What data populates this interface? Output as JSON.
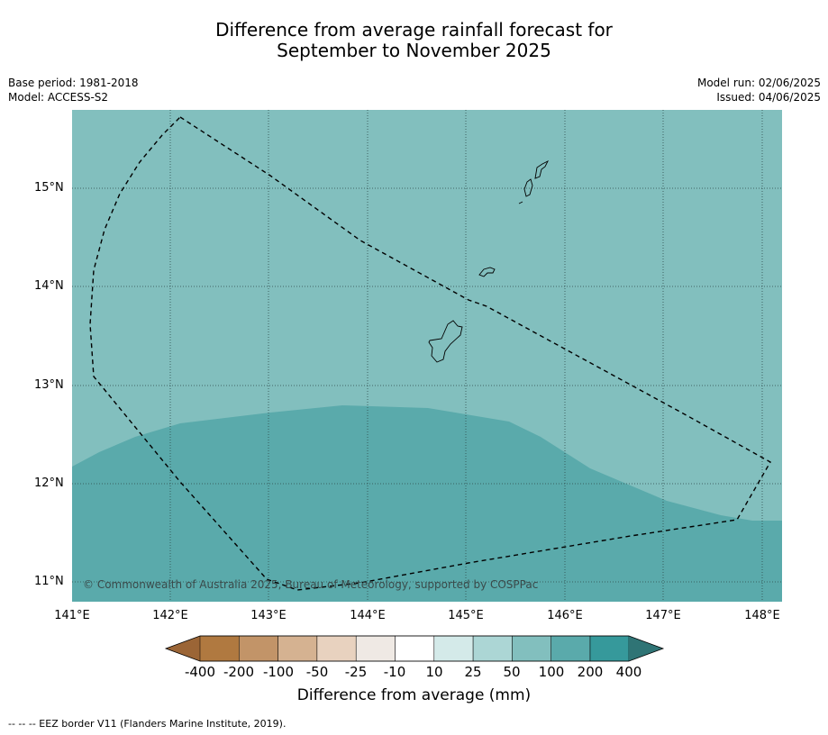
{
  "title": {
    "line1": "Difference from average rainfall forecast for",
    "line2": "September to November 2025"
  },
  "meta": {
    "base_period": "Base period: 1981-2018",
    "model": "Model: ACCESS-S2",
    "model_run": "Model run: 02/06/2025",
    "issued": "Issued: 04/06/2025"
  },
  "map": {
    "lat_labels": [
      "15°N",
      "14°N",
      "13°N",
      "12°N",
      "11°N"
    ],
    "lon_labels": [
      "141°E",
      "142°E",
      "143°E",
      "144°E",
      "145°E",
      "146°E",
      "147°E",
      "148°E"
    ],
    "copyright": "© Commonwealth of Australia 2025, Bureau of Meteorology, supported by COSPPac",
    "colors": {
      "zone_50_100": "#82bfbe",
      "zone_100_200": "#5aaaab",
      "grid": "#2e4a4a",
      "eez": "#000000"
    }
  },
  "colorbar": {
    "title": "Difference from average (mm)",
    "ticks": [
      "-400",
      "-200",
      "-100",
      "-50",
      "-25",
      "-10",
      "10",
      "25",
      "50",
      "100",
      "200",
      "400"
    ],
    "colors": [
      "#9b6536",
      "#b07940",
      "#c29468",
      "#d5b291",
      "#e8d2bf",
      "#efe9e4",
      "#ffffff",
      "#d4eae9",
      "#acd6d5",
      "#82bfbe",
      "#5aaaab",
      "#36999b",
      "#2f7475"
    ]
  },
  "footer": {
    "legend": "--  --  -- EEZ border V11 (Flanders Marine Institute, 2019)."
  }
}
